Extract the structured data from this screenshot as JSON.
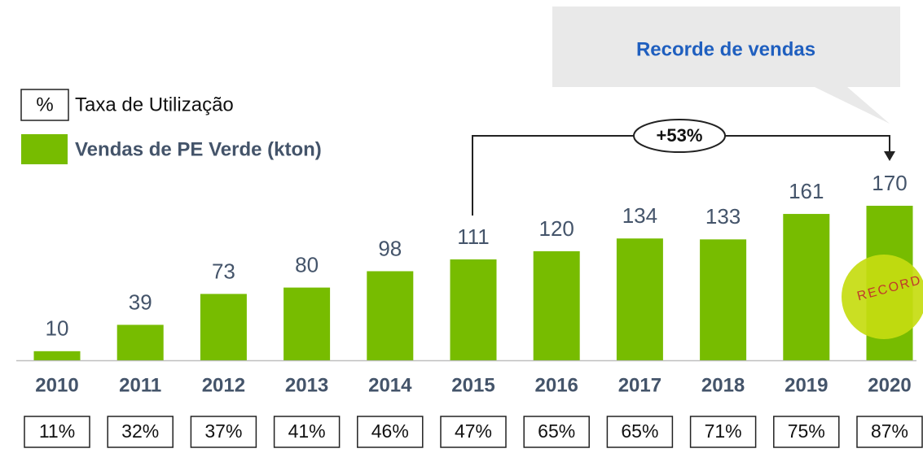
{
  "chart_data": {
    "type": "bar",
    "callout": "Recorde de vendas",
    "annotation": "+53%",
    "stamp": "RECORD",
    "legend": {
      "rate_symbol": "%",
      "rate_label": "Taxa de Utilização",
      "bar_label": "Vendas de PE Verde (kton)"
    },
    "categories": [
      "2010",
      "2011",
      "2012",
      "2013",
      "2014",
      "2015",
      "2016",
      "2017",
      "2018",
      "2019",
      "2020"
    ],
    "values": [
      10,
      39,
      73,
      80,
      98,
      111,
      120,
      134,
      133,
      161,
      170
    ],
    "color": "#77bc00",
    "utilization": {
      "values": [
        11,
        32,
        37,
        41,
        46,
        47,
        65,
        65,
        71,
        75,
        87
      ],
      "value_labels": [
        "11%",
        "32%",
        "37%",
        "41%",
        "46%",
        "47%",
        "65%",
        "65%",
        "71%",
        "75%",
        "87%"
      ]
    }
  }
}
